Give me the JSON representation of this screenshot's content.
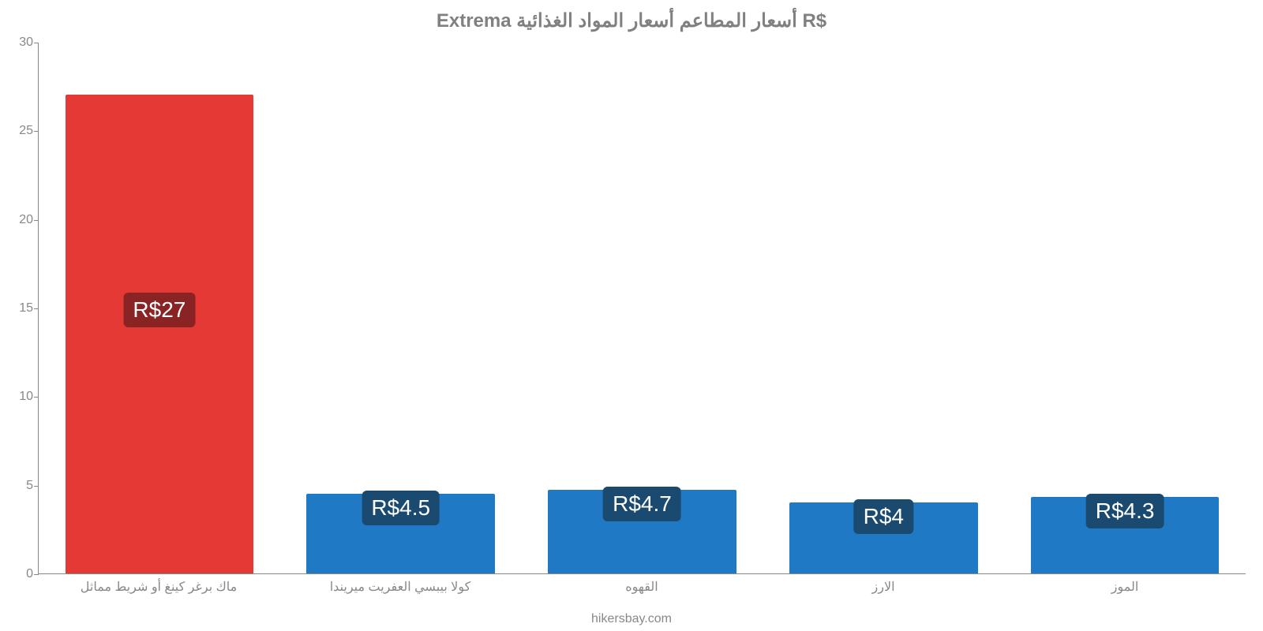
{
  "chart": {
    "type": "bar",
    "title": "Extrema أسعار المطاعم أسعار المواد الغذائية R$",
    "title_fontsize": 24,
    "title_color": "#808080",
    "background_color": "#ffffff",
    "axis_color": "#888888",
    "tick_label_color": "#888888",
    "tick_fontsize": 16,
    "xlabel_fontsize": 16,
    "ylim": [
      0,
      30
    ],
    "yticks": [
      0,
      5,
      10,
      15,
      20,
      25,
      30
    ],
    "categories": [
      "ماك برغر كينغ أو شريط مماثل",
      "كولا بيبسي العفريت ميريندا",
      "القهوه",
      "الارز",
      "الموز"
    ],
    "values": [
      27,
      4.5,
      4.7,
      4,
      4.3
    ],
    "value_labels": [
      "R$27",
      "R$4.5",
      "R$4.7",
      "R$4",
      "R$4.3"
    ],
    "bar_colors": [
      "#e53935",
      "#2079c4",
      "#2079c4",
      "#2079c4",
      "#2079c4"
    ],
    "label_bg_colors": [
      "#8a2323",
      "#1a4a70",
      "#1a4a70",
      "#1a4a70",
      "#1a4a70"
    ],
    "value_label_fontsize": 28,
    "value_label_color": "#ffffff",
    "bar_width_pct": 78,
    "source": "hikersbay.com"
  }
}
